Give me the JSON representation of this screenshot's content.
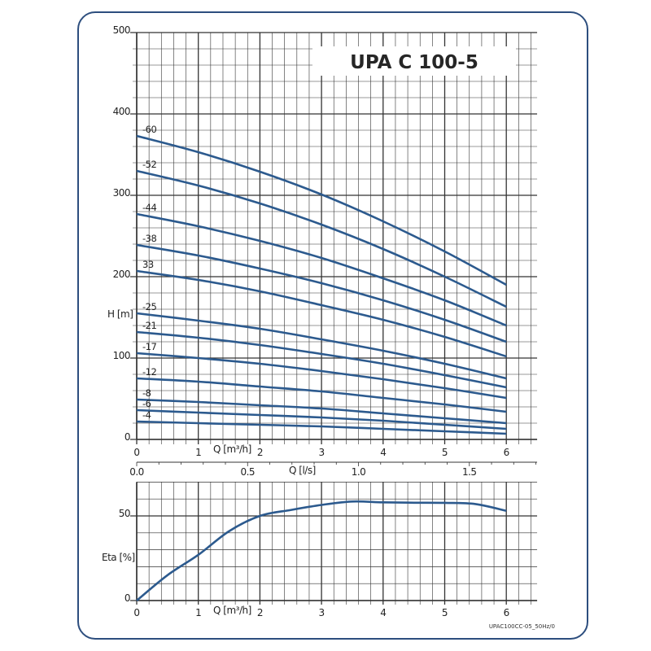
{
  "chart_data": [
    {
      "type": "line",
      "title": "UPA C 100-5",
      "xlabel": "Q [m³/h]",
      "ylabel": "H [m]",
      "secondary_xlabel": "Q [l/s]",
      "xlim": [
        0,
        6.5
      ],
      "ylim": [
        0,
        500
      ],
      "grid": true,
      "x_ticks": [
        "0",
        "1",
        "2",
        "3",
        "4",
        "5",
        "6"
      ],
      "y_ticks": [
        "0",
        "100",
        "200",
        "300",
        "400",
        "500"
      ],
      "secondary_x_ticks": [
        "0.0",
        "0.5",
        "1.0",
        "1.5"
      ],
      "x": [
        0,
        1,
        2,
        3,
        4,
        5,
        6
      ],
      "series": [
        {
          "name": "-60",
          "values": [
            373,
            353,
            329,
            301,
            268,
            231,
            190
          ]
        },
        {
          "name": "-52",
          "values": [
            330,
            312,
            290,
            264,
            234,
            200,
            163
          ]
        },
        {
          "name": "-44",
          "values": [
            277,
            262,
            244,
            223,
            198,
            171,
            140
          ]
        },
        {
          "name": "-38",
          "values": [
            239,
            226,
            210,
            192,
            171,
            147,
            120
          ]
        },
        {
          "name": "33",
          "values": [
            207,
            196,
            182,
            165,
            147,
            126,
            102
          ]
        },
        {
          "name": "-25",
          "values": [
            155,
            146,
            136,
            123,
            109,
            93,
            75
          ]
        },
        {
          "name": "-21",
          "values": [
            132,
            125,
            116,
            105,
            93,
            79,
            64
          ]
        },
        {
          "name": "-17",
          "values": [
            106,
            100,
            93,
            84,
            74,
            63,
            51
          ]
        },
        {
          "name": "-12",
          "values": [
            75,
            71,
            65,
            59,
            51,
            43,
            34
          ]
        },
        {
          "name": "-8",
          "values": [
            49,
            46,
            42,
            38,
            32,
            26,
            20
          ]
        },
        {
          "name": "-6",
          "values": [
            36,
            33,
            30,
            27,
            23,
            18,
            13
          ]
        },
        {
          "name": "-4",
          "values": [
            22,
            20,
            18,
            16,
            13,
            10,
            7
          ]
        }
      ]
    },
    {
      "type": "line",
      "xlabel": "Q [m³/h]",
      "ylabel": "Eta [%]",
      "xlim": [
        0,
        6.5
      ],
      "ylim": [
        0,
        70
      ],
      "grid": true,
      "x_ticks": [
        "0",
        "1",
        "2",
        "3",
        "4",
        "5",
        "6"
      ],
      "y_ticks": [
        "0",
        "50"
      ],
      "x": [
        0,
        0.5,
        1,
        1.5,
        2,
        2.5,
        3,
        3.5,
        4,
        4.5,
        5,
        5.5,
        6
      ],
      "series": [
        {
          "name": "Eta",
          "values": [
            0,
            15,
            27,
            41,
            50,
            53.5,
            56.5,
            58.5,
            58,
            57.8,
            57.7,
            57,
            53
          ]
        }
      ]
    }
  ],
  "footer_code": "UPAC100CC-05_50Hz/0",
  "colors": {
    "curve": "#2c5a8e",
    "frame": "#2d4e7e",
    "grid": "#333333"
  }
}
